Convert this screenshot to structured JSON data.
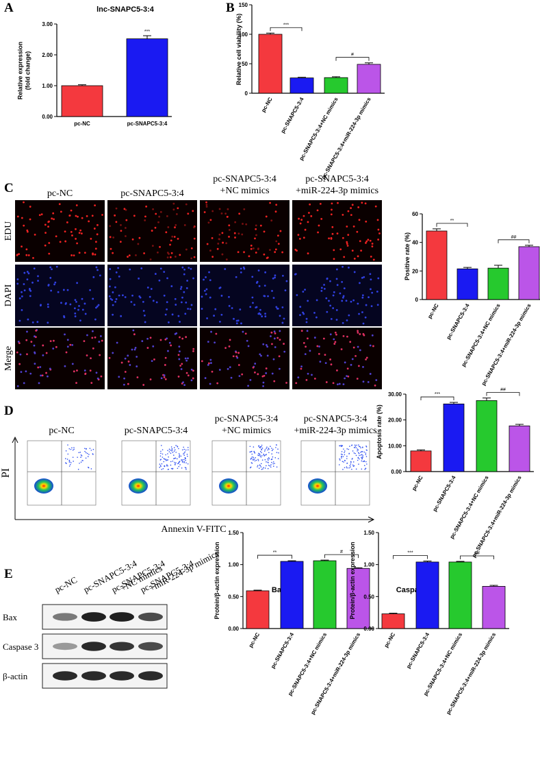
{
  "panels": {
    "A": "A",
    "B": "B",
    "C": "C",
    "D": "D",
    "E": "E"
  },
  "colors": {
    "pc_nc": "#f4393e",
    "snapc": "#1a1af2",
    "nc_mimics": "#26c92e",
    "mir": "#bb55e8",
    "error": "#000000"
  },
  "panel_c": {
    "columns": [
      "pc-NC",
      "pc-SNAPC5-3:4",
      "pc-SNAPC5-3:4\n+NC mimics",
      "pc-SNAPC5-3:4\n+miR-224-3p mimics"
    ],
    "rows": [
      "EDU",
      "DAPI",
      "Merge"
    ]
  },
  "panel_d": {
    "columns": [
      "pc-NC",
      "pc-SNAPC5-3:4",
      "pc-SNAPC5-3:4\n+NC mimics",
      "pc-SNAPC5-3:4\n+miR-224-3p mimics"
    ],
    "ylabel": "PI",
    "xlabel": "Annexin V-FITC"
  },
  "panel_e": {
    "columns": [
      "pc-NC",
      "pc-SNAPC5-3:4",
      "pc-SNAPC5-3:4\n+NC mimics",
      "pc-SNAPC5-3:4\n+miR-224-3p mimics"
    ],
    "rows": [
      "Bax",
      "Caspase 3",
      "β-actin"
    ]
  },
  "chart_data": [
    {
      "id": "A",
      "type": "bar",
      "title": "lnc-SNAPC5-3:4",
      "ylabel": "Relative expression\n(fold change)",
      "categories": [
        "pc-NC",
        "pc-SNAPC5-3:4"
      ],
      "values": [
        1.0,
        2.52
      ],
      "errors": [
        0.03,
        0.1
      ],
      "ylim": [
        0,
        3
      ],
      "yticks": [
        "0.00",
        "1.00",
        "2.00",
        "3.00"
      ],
      "annotations": [
        {
          "text": "***",
          "over": 1
        }
      ]
    },
    {
      "id": "B",
      "type": "bar",
      "title": "",
      "ylabel": "Relative cell viability (%)",
      "categories": [
        "pc-NC",
        "pc-SNAPC5-3:4",
        "pc-SNAPC5-3:4+NC mimics",
        "pc-SNAPC5-3:4+miR-224-3p mimics"
      ],
      "values": [
        100,
        26,
        26.5,
        49
      ],
      "errors": [
        2,
        1,
        1.5,
        2.5
      ],
      "ylim": [
        0,
        150
      ],
      "yticks": [
        "0",
        "50",
        "100",
        "150"
      ],
      "annotations": [
        {
          "text": "***",
          "from": 0,
          "to": 1
        },
        {
          "text": "#",
          "from": 2,
          "to": 3
        }
      ]
    },
    {
      "id": "C",
      "type": "bar",
      "title": "",
      "ylabel": "Positive rate (%)",
      "categories": [
        "pc-NC",
        "pc-SNAPC5-3:4",
        "pc-SNAPC5-3:4+NC mimics",
        "pc-SNAPC5-3:4+miR-224-3p mimics"
      ],
      "values": [
        48,
        21.5,
        22,
        37
      ],
      "errors": [
        1.5,
        1,
        2,
        1
      ],
      "ylim": [
        0,
        60
      ],
      "yticks": [
        "0",
        "20",
        "40",
        "60"
      ],
      "annotations": [
        {
          "text": "**",
          "from": 0,
          "to": 1
        },
        {
          "text": "##",
          "from": 2,
          "to": 3
        }
      ]
    },
    {
      "id": "D",
      "type": "bar",
      "title": "",
      "ylabel": "Apoptosis rate (%)",
      "categories": [
        "pc-NC",
        "pc-SNAPC5-3:4",
        "pc-SNAPC5-3:4+NC mimics",
        "pc-SNAPC5-3:4+miR-224-3p mimics"
      ],
      "values": [
        8,
        26.2,
        27.5,
        17.7
      ],
      "errors": [
        0.4,
        0.6,
        1,
        0.6
      ],
      "ylim": [
        0,
        30
      ],
      "yticks": [
        "0.00",
        "10.00",
        "20.00",
        "30.00"
      ],
      "annotations": [
        {
          "text": "***",
          "from": 0,
          "to": 1
        },
        {
          "text": "##",
          "from": 2,
          "to": 3
        }
      ]
    },
    {
      "id": "E1",
      "type": "bar",
      "title": "Bax",
      "ylabel": "Protein/β-actin expression",
      "categories": [
        "pc-NC",
        "pc-SNAPC5-3:4",
        "pc-SNAPC5-3:4+NC mimics",
        "pc-SNAPC5-3:4+miR-224-3p mimics"
      ],
      "values": [
        0.59,
        1.05,
        1.06,
        0.94
      ],
      "errors": [
        0.01,
        0.01,
        0.01,
        0.01
      ],
      "ylim": [
        0,
        1.5
      ],
      "yticks": [
        "0.00",
        "0.50",
        "1.00",
        "1.50"
      ],
      "annotations": [
        {
          "text": "**",
          "from": 0,
          "to": 1
        },
        {
          "text": "#",
          "from": 2,
          "to": 3
        }
      ]
    },
    {
      "id": "E2",
      "type": "bar",
      "title": "Caspase 3",
      "ylabel": "Protein/β-actin expression",
      "categories": [
        "pc-NC",
        "pc-SNAPC5-3:4",
        "pc-SNAPC5-3:4+NC mimics",
        "pc-SNAPC5-3:4+miR-224-3p mimics"
      ],
      "values": [
        0.23,
        1.04,
        1.04,
        0.66
      ],
      "errors": [
        0.01,
        0.015,
        0.01,
        0.015
      ],
      "ylim": [
        0,
        1.5
      ],
      "yticks": [
        "0.00",
        "0.50",
        "1.00",
        "1.50"
      ],
      "annotations": [
        {
          "text": "***",
          "from": 0,
          "to": 1
        },
        {
          "text": "##",
          "from": 2,
          "to": 3
        }
      ]
    }
  ]
}
